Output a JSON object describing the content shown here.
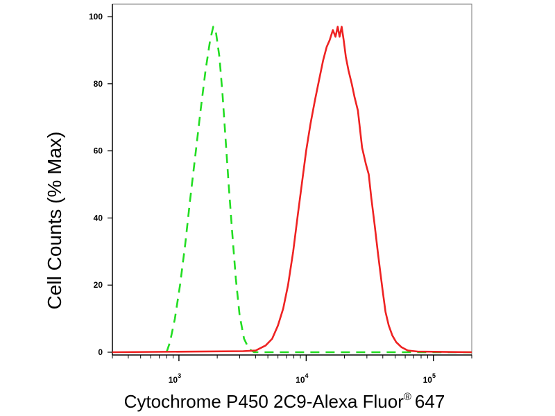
{
  "chart_data": {
    "type": "line",
    "xlabel": "Cytochrome P450 2C9-Alexa Fluor",
    "xlabel_superscript": "®",
    "xlabel_suffix": "647",
    "ylabel": "Cell Counts (% Max)",
    "x_scale": "log",
    "xlim": [
      300,
      200000
    ],
    "ylim": [
      0,
      105
    ],
    "x_ticks": [
      {
        "value": 1000,
        "base": "10",
        "exp": "3"
      },
      {
        "value": 10000,
        "base": "10",
        "exp": "4"
      },
      {
        "value": 100000,
        "base": "10",
        "exp": "5"
      }
    ],
    "y_ticks": [
      {
        "value": 0,
        "label": "0"
      },
      {
        "value": 20,
        "label": "20"
      },
      {
        "value": 40,
        "label": "40"
      },
      {
        "value": 60,
        "label": "60"
      },
      {
        "value": 80,
        "label": "80"
      },
      {
        "value": 100,
        "label": "100"
      }
    ],
    "grid": false,
    "series": [
      {
        "color": "#22dd22",
        "style": "dashed",
        "points": [
          [
            800,
            0
          ],
          [
            850,
            3
          ],
          [
            930,
            10
          ],
          [
            1020,
            20
          ],
          [
            1120,
            32
          ],
          [
            1220,
            45
          ],
          [
            1340,
            58
          ],
          [
            1480,
            72
          ],
          [
            1620,
            84
          ],
          [
            1760,
            93
          ],
          [
            1860,
            97
          ],
          [
            1960,
            95
          ],
          [
            2080,
            88
          ],
          [
            2200,
            77
          ],
          [
            2320,
            64
          ],
          [
            2460,
            50
          ],
          [
            2620,
            36
          ],
          [
            2800,
            22
          ],
          [
            3000,
            11
          ],
          [
            3250,
            4
          ],
          [
            3550,
            1
          ],
          [
            3900,
            0
          ],
          [
            6000,
            0
          ],
          [
            30000,
            0
          ],
          [
            200000,
            0
          ]
        ]
      },
      {
        "color": "#ee2222",
        "style": "solid",
        "points": [
          [
            300,
            0
          ],
          [
            3200,
            0.3
          ],
          [
            4000,
            0.5
          ],
          [
            4800,
            2
          ],
          [
            5400,
            4
          ],
          [
            6000,
            8
          ],
          [
            6600,
            13
          ],
          [
            7200,
            20
          ],
          [
            7900,
            30
          ],
          [
            8600,
            41
          ],
          [
            9300,
            51
          ],
          [
            10000,
            60
          ],
          [
            10800,
            68
          ],
          [
            11700,
            75
          ],
          [
            12600,
            81
          ],
          [
            13600,
            87
          ],
          [
            14500,
            91
          ],
          [
            15300,
            93
          ],
          [
            16200,
            96
          ],
          [
            17000,
            94
          ],
          [
            17700,
            97
          ],
          [
            18300,
            94
          ],
          [
            19000,
            97
          ],
          [
            19700,
            93
          ],
          [
            20500,
            88
          ],
          [
            21500,
            84
          ],
          [
            22800,
            80
          ],
          [
            24000,
            76
          ],
          [
            25500,
            72
          ],
          [
            27500,
            61
          ],
          [
            29500,
            56
          ],
          [
            31000,
            53
          ],
          [
            32500,
            46
          ],
          [
            34500,
            38
          ],
          [
            36500,
            30
          ],
          [
            38500,
            23
          ],
          [
            40000,
            18
          ],
          [
            42000,
            12
          ],
          [
            44500,
            8
          ],
          [
            47500,
            5
          ],
          [
            51000,
            3
          ],
          [
            56000,
            1.5
          ],
          [
            63000,
            0.5
          ],
          [
            75000,
            0.2
          ],
          [
            200000,
            0
          ]
        ]
      }
    ]
  }
}
